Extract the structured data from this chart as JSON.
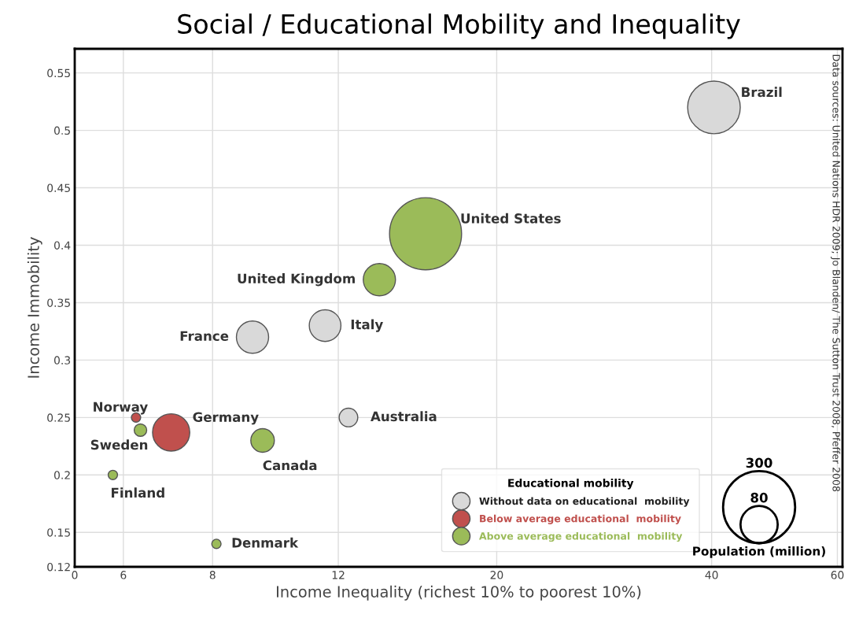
{
  "chart_data": {
    "type": "bubble",
    "title": "Social / Educational Mobility and Inequality",
    "xlabel": "Income Inequality (richest 10% to poorest 10%)",
    "ylabel": "Income Immobility",
    "legend_title": "Educational mobility",
    "log": "x",
    "xlim": [
      0,
      61
    ],
    "xticks": [
      0,
      6,
      8,
      12,
      20,
      40,
      60
    ],
    "ylim": [
      0.12,
      0.571
    ],
    "yticks": [
      0.12,
      0.15,
      0.2,
      0.25,
      0.3,
      0.35,
      0.4,
      0.45,
      0.5,
      0.55
    ],
    "grid": true,
    "legend": "bottom right",
    "marker": "circle",
    "size_legend": [
      300,
      80
    ],
    "series": [
      {
        "name": "Without data on educational  mobility",
        "color": "#d9d9d9",
        "x": [
          9.1,
          11.5,
          12.4,
          40.3
        ],
        "values": [
          0.32,
          0.33,
          0.25,
          0.52
        ],
        "sizes": [
          60,
          58,
          20,
          160
        ]
      },
      {
        "name": "Below average educational  mobility",
        "color": "#c0504d",
        "x": [
          6.25,
          7.0
        ],
        "values": [
          0.25,
          0.237
        ],
        "sizes": [
          5,
          80
        ]
      },
      {
        "name": "Above average educational  mobility",
        "color": "#9bbb59",
        "x": [
          6.34,
          5.8,
          9.4,
          8.1,
          13.7,
          15.9
        ],
        "values": [
          0.239,
          0.2,
          0.23,
          0.14,
          0.37,
          0.41
        ],
        "sizes": [
          9,
          5,
          32,
          5,
          60,
          300
        ]
      }
    ],
    "annotations": [
      "Data sources: United Nations HDR 2009; Jo Blanden/ The Sutton Trust 2008, Pfeffer 2008",
      "Population (million)",
      {
        "text": "Norway",
        "x": 6.25,
        "y": 0.25
      },
      {
        "text": "Sweden",
        "x": 6.34,
        "y": 0.239
      },
      {
        "text": "Germany",
        "x": 7.0,
        "y": 0.237
      },
      {
        "text": "Finland",
        "x": 5.8,
        "y": 0.2
      },
      {
        "text": "Canada",
        "x": 9.4,
        "y": 0.23
      },
      {
        "text": "Denmark",
        "x": 8.1,
        "y": 0.14
      },
      {
        "text": "France",
        "x": 9.1,
        "y": 0.32
      },
      {
        "text": "Italy",
        "x": 11.5,
        "y": 0.33
      },
      {
        "text": "Australia",
        "x": 12.4,
        "y": 0.25
      },
      {
        "text": "United Kingdom",
        "x": 13.7,
        "y": 0.37
      },
      {
        "text": "United States",
        "x": 15.9,
        "y": 0.41
      },
      {
        "text": "Brazil",
        "x": 40.3,
        "y": 0.52
      }
    ]
  }
}
